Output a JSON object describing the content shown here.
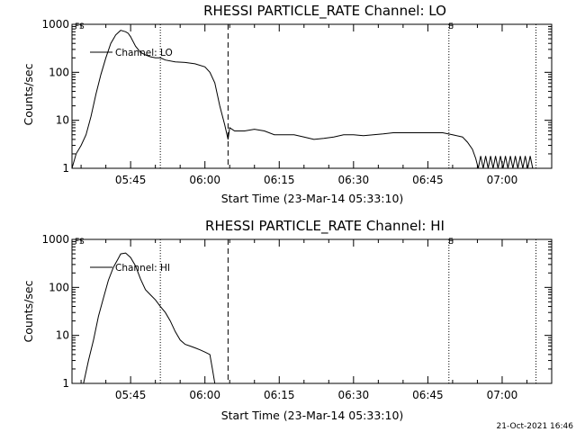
{
  "footer_date": "21-Oct-2021 16:46",
  "chart_data": [
    {
      "type": "line",
      "title": "RHESSI PARTICLE_RATE Channel: LO",
      "xlabel": "Start Time (23-Mar-14 05:33:10)",
      "ylabel": "Counts/sec",
      "y_scale": "log",
      "ylim": [
        1,
        1000
      ],
      "y_tick_labels": [
        "1",
        "10",
        "100",
        "1000"
      ],
      "xlim": [
        "05:33:10",
        "07:10:00"
      ],
      "x_tick_labels": [
        "05:45",
        "06:00",
        "06:15",
        "06:30",
        "06:45",
        "07:00"
      ],
      "legend": "Channel: LO",
      "corner_labels": [
        "FS",
        "E"
      ],
      "dotted_lines": [
        "05:51:00",
        "06:49:15",
        "07:06:50"
      ],
      "dashed_lines": [
        "06:04:40"
      ],
      "grid": false,
      "series": [
        {
          "x": [
            "05:33:10",
            "05:34:00",
            "05:35:00",
            "05:36:00",
            "05:37:00",
            "05:38:00",
            "05:39:00",
            "05:40:00",
            "05:41:00",
            "05:42:00",
            "05:43:00",
            "05:44:00",
            "05:44:30",
            "05:45:00",
            "05:46:00",
            "05:47:00",
            "05:48:00",
            "05:49:00",
            "05:50:00",
            "05:51:00",
            "05:52:00",
            "05:54:00",
            "05:56:00",
            "05:58:00",
            "06:00:00",
            "06:01:00",
            "06:02:00",
            "06:03:00",
            "06:04:00",
            "06:04:40",
            "06:05:00",
            "06:06:00",
            "06:08:00",
            "06:10:00",
            "06:12:00",
            "06:14:00",
            "06:16:00",
            "06:18:00",
            "06:20:00",
            "06:22:00",
            "06:24:00",
            "06:26:00",
            "06:28:00",
            "06:30:00",
            "06:32:00",
            "06:34:00",
            "06:36:00",
            "06:38:00",
            "06:40:00",
            "06:42:00",
            "06:44:00",
            "06:46:00",
            "06:48:00",
            "06:50:00",
            "06:52:00",
            "06:53:00",
            "06:54:00",
            "06:54:40",
            "06:55:10",
            "06:55:40",
            "06:56:10",
            "06:56:40",
            "06:57:10",
            "06:57:40",
            "06:58:10",
            "06:58:40",
            "06:59:10",
            "06:59:40",
            "07:00:10",
            "07:00:40",
            "07:01:10",
            "07:01:40",
            "07:02:10",
            "07:02:40",
            "07:03:10",
            "07:03:40",
            "07:04:10",
            "07:04:40",
            "07:05:10",
            "07:05:40",
            "07:06:10"
          ],
          "y": [
            1,
            2,
            3,
            5,
            12,
            35,
            90,
            200,
            400,
            600,
            750,
            700,
            650,
            550,
            350,
            260,
            230,
            210,
            200,
            200,
            180,
            165,
            160,
            150,
            130,
            100,
            60,
            20,
            8,
            4,
            7,
            6,
            6,
            6.5,
            6,
            5,
            5,
            5,
            4.5,
            4,
            4.2,
            4.5,
            5,
            5,
            4.8,
            5,
            5.2,
            5.5,
            5.5,
            5.5,
            5.5,
            5.5,
            5.5,
            5,
            4.5,
            3.5,
            2.5,
            1.6,
            1,
            1.8,
            1,
            1.8,
            1,
            1.8,
            1,
            1.8,
            1,
            1.8,
            1,
            1.8,
            1,
            1.8,
            1,
            1.8,
            1,
            1.8,
            1,
            1.8,
            1,
            1.8,
            1
          ]
        }
      ]
    },
    {
      "type": "line",
      "title": "RHESSI PARTICLE_RATE Channel: HI",
      "xlabel": "Start Time (23-Mar-14 05:33:10)",
      "ylabel": "Counts/sec",
      "y_scale": "log",
      "ylim": [
        1,
        1000
      ],
      "y_tick_labels": [
        "1",
        "10",
        "100",
        "1000"
      ],
      "xlim": [
        "05:33:10",
        "07:10:00"
      ],
      "x_tick_labels": [
        "05:45",
        "06:00",
        "06:15",
        "06:30",
        "06:45",
        "07:00"
      ],
      "legend": "Channel: HI",
      "corner_labels": [
        "FS",
        "E"
      ],
      "dotted_lines": [
        "05:51:00",
        "06:49:15",
        "07:06:50"
      ],
      "dashed_lines": [
        "06:04:40"
      ],
      "grid": false,
      "series": [
        {
          "x": [
            "05:35:30",
            "05:36:30",
            "05:37:30",
            "05:38:30",
            "05:39:30",
            "05:40:30",
            "05:41:30",
            "05:42:30",
            "05:43:00",
            "05:44:00",
            "05:45:00",
            "05:46:00",
            "05:47:00",
            "05:48:00",
            "05:49:00",
            "05:50:00",
            "05:51:00",
            "05:52:00",
            "05:53:00",
            "05:54:00",
            "05:55:00",
            "05:56:00",
            "05:57:00",
            "05:58:00",
            "05:59:00",
            "06:00:00",
            "06:01:00",
            "06:01:30",
            "06:02:00"
          ],
          "y": [
            1,
            3,
            8,
            25,
            60,
            140,
            260,
            400,
            500,
            520,
            420,
            280,
            150,
            90,
            70,
            55,
            40,
            30,
            20,
            12,
            8,
            6.5,
            6,
            5.5,
            5,
            4.5,
            4,
            2,
            1
          ]
        }
      ]
    }
  ]
}
